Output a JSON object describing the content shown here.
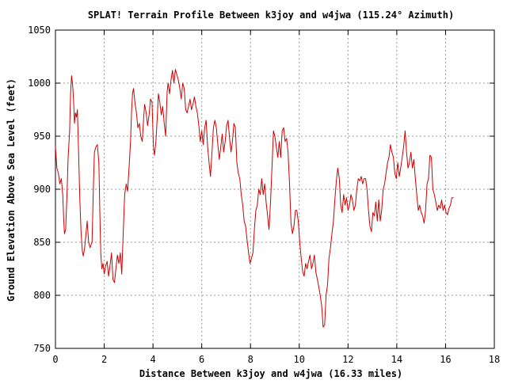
{
  "chart_data": {
    "type": "line",
    "title": "SPLAT! Terrain Profile Between k3joy and w4jwa (115.24° Azimuth)",
    "xlabel": "Distance Between k3joy and w4jwa (16.33 miles)",
    "ylabel": "Ground Elevation Above Sea Level (feet)",
    "xlim": [
      0,
      18
    ],
    "ylim": [
      750,
      1050
    ],
    "x_ticks": [
      "0",
      "2",
      "4",
      "6",
      "8",
      "10",
      "12",
      "14",
      "16",
      "18"
    ],
    "y_ticks": [
      "750",
      "800",
      "850",
      "900",
      "950",
      "1000",
      "1050"
    ],
    "grid": true,
    "series": [
      {
        "color": "#d00000",
        "points": [
          [
            0.0,
            940
          ],
          [
            0.06,
            920
          ],
          [
            0.12,
            915
          ],
          [
            0.18,
            905
          ],
          [
            0.24,
            910
          ],
          [
            0.3,
            895
          ],
          [
            0.34,
            870
          ],
          [
            0.37,
            858
          ],
          [
            0.42,
            862
          ],
          [
            0.48,
            900
          ],
          [
            0.52,
            930
          ],
          [
            0.58,
            955
          ],
          [
            0.62,
            990
          ],
          [
            0.66,
            1007
          ],
          [
            0.7,
            1000
          ],
          [
            0.74,
            985
          ],
          [
            0.78,
            962
          ],
          [
            0.82,
            972
          ],
          [
            0.86,
            968
          ],
          [
            0.9,
            975
          ],
          [
            0.95,
            935
          ],
          [
            1.0,
            890
          ],
          [
            1.05,
            860
          ],
          [
            1.1,
            842
          ],
          [
            1.14,
            837
          ],
          [
            1.2,
            845
          ],
          [
            1.26,
            860
          ],
          [
            1.3,
            870
          ],
          [
            1.36,
            850
          ],
          [
            1.42,
            845
          ],
          [
            1.5,
            850
          ],
          [
            1.56,
            905
          ],
          [
            1.6,
            935
          ],
          [
            1.66,
            940
          ],
          [
            1.72,
            942
          ],
          [
            1.78,
            925
          ],
          [
            1.82,
            880
          ],
          [
            1.86,
            840
          ],
          [
            1.9,
            825
          ],
          [
            1.95,
            830
          ],
          [
            2.0,
            820
          ],
          [
            2.06,
            828
          ],
          [
            2.12,
            832
          ],
          [
            2.18,
            818
          ],
          [
            2.24,
            828
          ],
          [
            2.3,
            840
          ],
          [
            2.36,
            815
          ],
          [
            2.42,
            812
          ],
          [
            2.48,
            825
          ],
          [
            2.54,
            838
          ],
          [
            2.6,
            830
          ],
          [
            2.66,
            840
          ],
          [
            2.72,
            820
          ],
          [
            2.78,
            860
          ],
          [
            2.84,
            895
          ],
          [
            2.9,
            905
          ],
          [
            2.96,
            898
          ],
          [
            3.02,
            920
          ],
          [
            3.08,
            945
          ],
          [
            3.12,
            972
          ],
          [
            3.16,
            990
          ],
          [
            3.2,
            995
          ],
          [
            3.26,
            982
          ],
          [
            3.32,
            972
          ],
          [
            3.38,
            958
          ],
          [
            3.44,
            962
          ],
          [
            3.5,
            950
          ],
          [
            3.56,
            945
          ],
          [
            3.62,
            968
          ],
          [
            3.66,
            980
          ],
          [
            3.72,
            972
          ],
          [
            3.78,
            960
          ],
          [
            3.84,
            970
          ],
          [
            3.9,
            985
          ],
          [
            3.96,
            982
          ],
          [
            4.02,
            940
          ],
          [
            4.06,
            932
          ],
          [
            4.12,
            945
          ],
          [
            4.18,
            970
          ],
          [
            4.22,
            990
          ],
          [
            4.28,
            982
          ],
          [
            4.34,
            970
          ],
          [
            4.4,
            978
          ],
          [
            4.46,
            962
          ],
          [
            4.52,
            950
          ],
          [
            4.58,
            992
          ],
          [
            4.62,
            1000
          ],
          [
            4.68,
            990
          ],
          [
            4.74,
            1003
          ],
          [
            4.8,
            1012
          ],
          [
            4.86,
            1000
          ],
          [
            4.92,
            1013
          ],
          [
            4.98,
            1008
          ],
          [
            5.04,
            1003
          ],
          [
            5.1,
            995
          ],
          [
            5.16,
            985
          ],
          [
            5.22,
            1000
          ],
          [
            5.28,
            995
          ],
          [
            5.34,
            975
          ],
          [
            5.4,
            972
          ],
          [
            5.46,
            978
          ],
          [
            5.52,
            985
          ],
          [
            5.58,
            975
          ],
          [
            5.64,
            980
          ],
          [
            5.7,
            987
          ],
          [
            5.76,
            978
          ],
          [
            5.82,
            972
          ],
          [
            5.88,
            960
          ],
          [
            5.94,
            945
          ],
          [
            6.0,
            955
          ],
          [
            6.06,
            942
          ],
          [
            6.12,
            958
          ],
          [
            6.18,
            965
          ],
          [
            6.24,
            940
          ],
          [
            6.3,
            925
          ],
          [
            6.36,
            912
          ],
          [
            6.42,
            935
          ],
          [
            6.48,
            958
          ],
          [
            6.54,
            965
          ],
          [
            6.6,
            958
          ],
          [
            6.66,
            942
          ],
          [
            6.72,
            928
          ],
          [
            6.78,
            940
          ],
          [
            6.84,
            952
          ],
          [
            6.9,
            935
          ],
          [
            6.96,
            945
          ],
          [
            7.02,
            960
          ],
          [
            7.08,
            965
          ],
          [
            7.14,
            948
          ],
          [
            7.2,
            935
          ],
          [
            7.26,
            945
          ],
          [
            7.32,
            962
          ],
          [
            7.38,
            958
          ],
          [
            7.44,
            925
          ],
          [
            7.5,
            915
          ],
          [
            7.56,
            910
          ],
          [
            7.62,
            895
          ],
          [
            7.68,
            885
          ],
          [
            7.74,
            870
          ],
          [
            7.8,
            865
          ],
          [
            7.86,
            852
          ],
          [
            7.92,
            840
          ],
          [
            7.98,
            830
          ],
          [
            8.04,
            835
          ],
          [
            8.1,
            840
          ],
          [
            8.16,
            862
          ],
          [
            8.22,
            880
          ],
          [
            8.28,
            885
          ],
          [
            8.34,
            900
          ],
          [
            8.4,
            895
          ],
          [
            8.46,
            910
          ],
          [
            8.52,
            895
          ],
          [
            8.58,
            905
          ],
          [
            8.64,
            888
          ],
          [
            8.7,
            875
          ],
          [
            8.76,
            862
          ],
          [
            8.82,
            888
          ],
          [
            8.88,
            920
          ],
          [
            8.94,
            955
          ],
          [
            9.0,
            950
          ],
          [
            9.06,
            940
          ],
          [
            9.12,
            930
          ],
          [
            9.18,
            945
          ],
          [
            9.24,
            930
          ],
          [
            9.3,
            955
          ],
          [
            9.36,
            958
          ],
          [
            9.42,
            945
          ],
          [
            9.48,
            948
          ],
          [
            9.54,
            935
          ],
          [
            9.6,
            905
          ],
          [
            9.66,
            868
          ],
          [
            9.72,
            858
          ],
          [
            9.78,
            865
          ],
          [
            9.84,
            880
          ],
          [
            9.9,
            880
          ],
          [
            9.96,
            870
          ],
          [
            10.02,
            850
          ],
          [
            10.08,
            835
          ],
          [
            10.14,
            822
          ],
          [
            10.2,
            818
          ],
          [
            10.26,
            830
          ],
          [
            10.32,
            825
          ],
          [
            10.38,
            832
          ],
          [
            10.44,
            838
          ],
          [
            10.5,
            825
          ],
          [
            10.56,
            830
          ],
          [
            10.62,
            838
          ],
          [
            10.68,
            822
          ],
          [
            10.74,
            815
          ],
          [
            10.8,
            808
          ],
          [
            10.86,
            800
          ],
          [
            10.92,
            790
          ],
          [
            10.98,
            770
          ],
          [
            11.04,
            772
          ],
          [
            11.1,
            800
          ],
          [
            11.16,
            810
          ],
          [
            11.22,
            835
          ],
          [
            11.28,
            845
          ],
          [
            11.34,
            858
          ],
          [
            11.4,
            870
          ],
          [
            11.46,
            890
          ],
          [
            11.52,
            908
          ],
          [
            11.58,
            920
          ],
          [
            11.64,
            910
          ],
          [
            11.7,
            885
          ],
          [
            11.76,
            878
          ],
          [
            11.82,
            895
          ],
          [
            11.88,
            885
          ],
          [
            11.94,
            892
          ],
          [
            12.0,
            880
          ],
          [
            12.06,
            885
          ],
          [
            12.12,
            895
          ],
          [
            12.18,
            890
          ],
          [
            12.24,
            880
          ],
          [
            12.3,
            885
          ],
          [
            12.36,
            900
          ],
          [
            12.42,
            910
          ],
          [
            12.48,
            908
          ],
          [
            12.54,
            912
          ],
          [
            12.6,
            905
          ],
          [
            12.66,
            910
          ],
          [
            12.72,
            910
          ],
          [
            12.78,
            900
          ],
          [
            12.84,
            880
          ],
          [
            12.9,
            865
          ],
          [
            12.96,
            860
          ],
          [
            13.02,
            878
          ],
          [
            13.08,
            875
          ],
          [
            13.14,
            888
          ],
          [
            13.2,
            870
          ],
          [
            13.26,
            890
          ],
          [
            13.32,
            870
          ],
          [
            13.38,
            880
          ],
          [
            13.44,
            900
          ],
          [
            13.5,
            905
          ],
          [
            13.56,
            915
          ],
          [
            13.62,
            925
          ],
          [
            13.68,
            930
          ],
          [
            13.74,
            942
          ],
          [
            13.8,
            935
          ],
          [
            13.86,
            930
          ],
          [
            13.92,
            915
          ],
          [
            13.98,
            910
          ],
          [
            14.04,
            925
          ],
          [
            14.1,
            912
          ],
          [
            14.16,
            920
          ],
          [
            14.22,
            930
          ],
          [
            14.28,
            940
          ],
          [
            14.34,
            955
          ],
          [
            14.4,
            935
          ],
          [
            14.46,
            920
          ],
          [
            14.52,
            925
          ],
          [
            14.58,
            935
          ],
          [
            14.64,
            920
          ],
          [
            14.7,
            928
          ],
          [
            14.76,
            910
          ],
          [
            14.82,
            895
          ],
          [
            14.88,
            880
          ],
          [
            14.94,
            885
          ],
          [
            15.0,
            878
          ],
          [
            15.06,
            875
          ],
          [
            15.12,
            868
          ],
          [
            15.18,
            880
          ],
          [
            15.24,
            905
          ],
          [
            15.3,
            910
          ],
          [
            15.36,
            932
          ],
          [
            15.42,
            930
          ],
          [
            15.48,
            900
          ],
          [
            15.54,
            895
          ],
          [
            15.6,
            888
          ],
          [
            15.66,
            880
          ],
          [
            15.72,
            885
          ],
          [
            15.78,
            882
          ],
          [
            15.84,
            890
          ],
          [
            15.9,
            880
          ],
          [
            15.96,
            885
          ],
          [
            16.02,
            878
          ],
          [
            16.08,
            876
          ],
          [
            16.14,
            882
          ],
          [
            16.2,
            885
          ],
          [
            16.26,
            892
          ],
          [
            16.33,
            892
          ]
        ]
      }
    ]
  }
}
